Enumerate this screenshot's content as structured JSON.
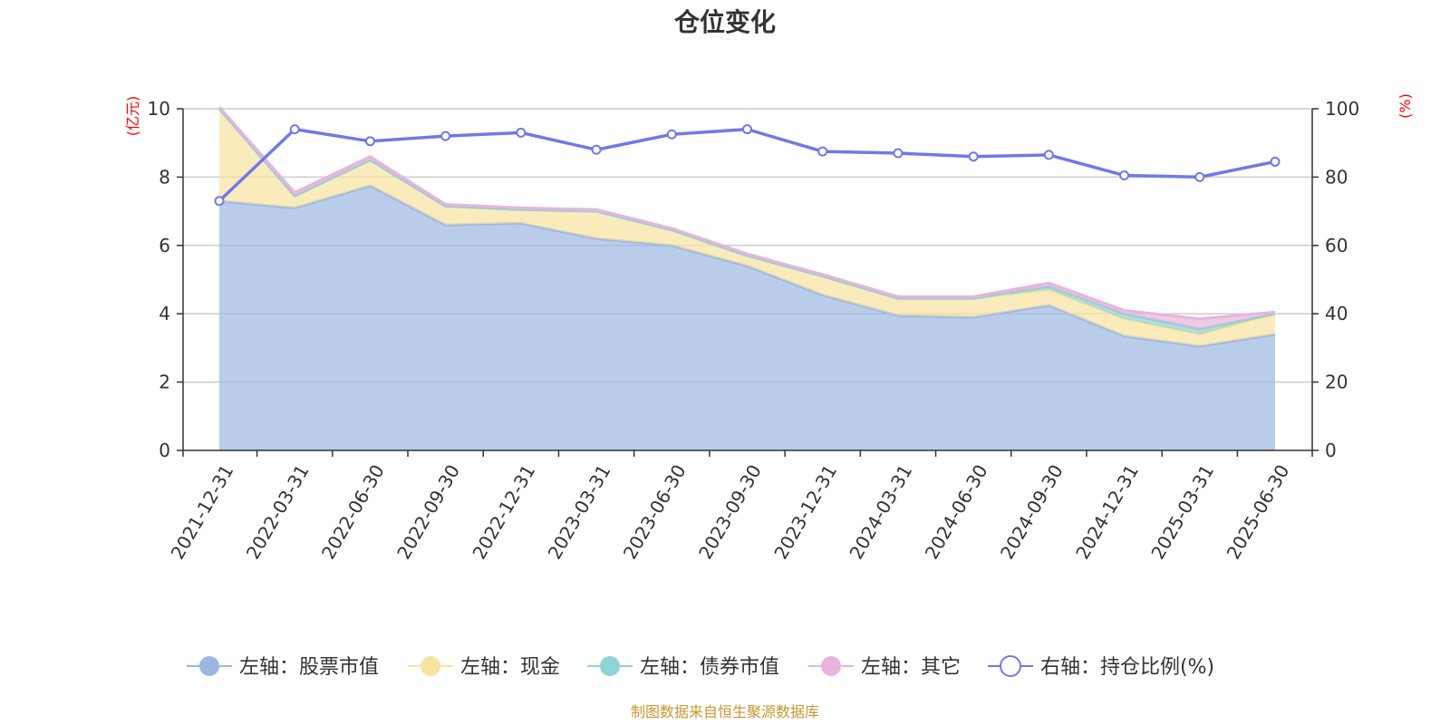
{
  "chart_data": {
    "type": "area",
    "title": "仓位变化",
    "left_unit": "(亿元)",
    "right_unit": "(%)",
    "categories": [
      "2021-12-31",
      "2022-03-31",
      "2022-06-30",
      "2022-09-30",
      "2022-12-31",
      "2023-03-31",
      "2023-06-30",
      "2023-09-30",
      "2023-12-31",
      "2024-03-31",
      "2024-06-30",
      "2024-09-30",
      "2024-12-31",
      "2025-03-31",
      "2025-06-30"
    ],
    "left_ylim": [
      0,
      10
    ],
    "left_ticks": [
      "0",
      "2",
      "4",
      "6",
      "8",
      "10"
    ],
    "right_ylim": [
      0,
      100
    ],
    "right_ticks": [
      "0",
      "20",
      "40",
      "60",
      "80",
      "100"
    ],
    "series": [
      {
        "name": "左轴：股票市值",
        "axis": "left",
        "stack": true,
        "color": "#9bb7e0",
        "values": [
          7.3,
          7.1,
          7.75,
          6.6,
          6.65,
          6.2,
          6.0,
          5.4,
          4.55,
          3.95,
          3.9,
          4.25,
          3.35,
          3.05,
          3.4
        ]
      },
      {
        "name": "左轴：现金",
        "axis": "left",
        "stack": true,
        "color": "#f8e3a1",
        "values": [
          2.7,
          0.35,
          0.75,
          0.55,
          0.4,
          0.8,
          0.45,
          0.3,
          0.55,
          0.5,
          0.55,
          0.45,
          0.5,
          0.35,
          0.6
        ]
      },
      {
        "name": "左轴：债券市值",
        "axis": "left",
        "stack": true,
        "color": "#8fd3d4",
        "values": [
          0,
          0,
          0,
          0,
          0,
          0,
          0,
          0,
          0,
          0,
          0,
          0.1,
          0.15,
          0.15,
          0
        ]
      },
      {
        "name": "左轴：其它",
        "axis": "left",
        "stack": true,
        "color": "#e8b4dc",
        "values": [
          0.05,
          0.1,
          0.1,
          0.05,
          0.05,
          0.05,
          0.05,
          0.05,
          0.05,
          0.05,
          0.05,
          0.1,
          0.1,
          0.3,
          0.05
        ]
      },
      {
        "name": "右轴：持仓比例(%)",
        "axis": "right",
        "stack": false,
        "color": "#7079e8",
        "values": [
          73,
          94,
          90.5,
          92,
          93,
          88,
          92.5,
          94,
          87.5,
          87,
          86,
          86.5,
          80.5,
          80,
          84.5
        ]
      }
    ],
    "legend_position": "bottom",
    "grid": true
  },
  "source_note": "制图数据来自恒生聚源数据库"
}
